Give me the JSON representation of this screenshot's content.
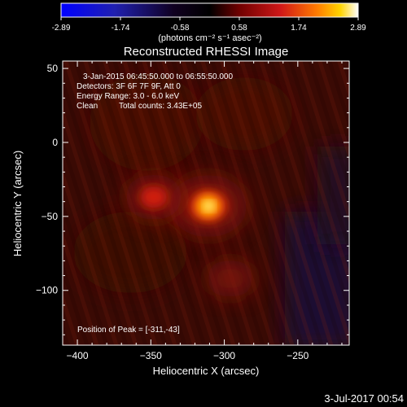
{
  "colorbar": {
    "ticks": [
      "-2.89",
      "-1.74",
      "-0.58",
      "0.58",
      "1.74",
      "2.89"
    ],
    "unit": "(photons cm⁻² s⁻¹ asec⁻²)",
    "stops": [
      "#0000ff",
      "#1a1aa8",
      "#000000",
      "#600000",
      "#d01010",
      "#ff6a00",
      "#ffd000",
      "#ffffff"
    ]
  },
  "chart_data": {
    "type": "heatmap",
    "title": "Reconstructed RHESSI Image",
    "xlabel": "Heliocentric X (arcsec)",
    "ylabel": "Heliocentric Y (arcsec)",
    "xlim": [
      -410,
      -215
    ],
    "ylim": [
      -137,
      55
    ],
    "x_ticks": [
      -400,
      -350,
      -300,
      -250
    ],
    "y_ticks": [
      50,
      0,
      -50,
      -100
    ],
    "sources": [
      {
        "x": -311,
        "y": -43,
        "peak": 2.89
      },
      {
        "x": -348,
        "y": -37,
        "peak": 1.35
      },
      {
        "x": -296,
        "y": -92,
        "peak": 0.6
      }
    ],
    "annotations": {
      "time": "3-Jan-2015 06:45:50.000 to 06:55:50.000",
      "detectors": "Detectors: 3F 6F 7F 9F, Att 0",
      "energy": "Energy Range: 3.0 - 6.0 keV",
      "clean": "Clean",
      "counts": "Total counts: 3.43E+05",
      "peak_position": "Position of Peak = [-311,-43]"
    }
  },
  "footer": {
    "date": "3-Jul-2017 00:54"
  }
}
